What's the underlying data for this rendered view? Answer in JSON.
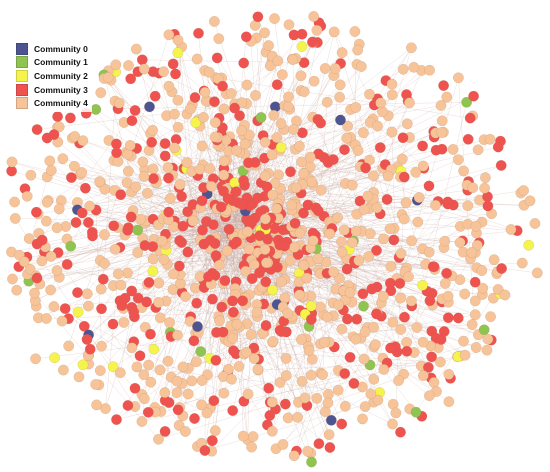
{
  "legend": {
    "items": [
      {
        "label": "Community 0",
        "color": "#4d5591"
      },
      {
        "label": "Community 1",
        "color": "#8fc451"
      },
      {
        "label": "Community 2",
        "color": "#f4f44c"
      },
      {
        "label": "Community 3",
        "color": "#ef5350"
      },
      {
        "label": "Community 4",
        "color": "#f7c49a"
      }
    ]
  },
  "graph": {
    "node_stroke": "#9a6a4a",
    "edge_color": "#c8a7a0",
    "community_share": [
      0.01,
      0.02,
      0.02,
      0.3,
      0.65
    ]
  }
}
